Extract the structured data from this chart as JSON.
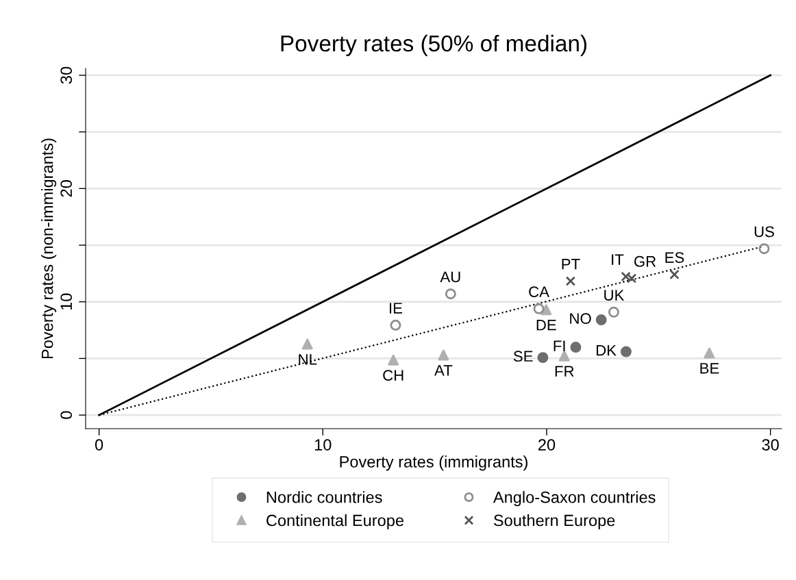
{
  "chart_data": {
    "type": "scatter",
    "title": "Poverty rates (50% of median)",
    "xlabel": "Poverty rates (immigrants)",
    "ylabel": "Poverty rates (non-immigrants)",
    "xlim": [
      -0.6,
      30.5
    ],
    "ylim": [
      -1.2,
      30.6
    ],
    "xticks": [
      0,
      10,
      20,
      30
    ],
    "yticks": [
      0,
      {
        "value": 5,
        "label": null
      },
      10,
      {
        "value": 15,
        "label": null
      },
      20,
      {
        "value": 25,
        "label": null
      },
      30
    ],
    "grid": "y",
    "legend": "bottom",
    "series": [
      {
        "name": "Nordic countries",
        "color": "#6e6e6e",
        "marker": "circle",
        "x": [
          19.83,
          21.3,
          22.44,
          23.55
        ],
        "values": [
          5.08,
          5.99,
          8.41,
          5.6
        ]
      },
      {
        "name": "Continental Europe",
        "color": "#b0b0b0",
        "marker": "triangle",
        "x": [
          19.98,
          9.31,
          13.15,
          15.39,
          20.79,
          27.27
        ],
        "values": [
          9.3,
          6.27,
          4.86,
          5.3,
          5.22,
          5.48
        ]
      },
      {
        "name": "Anglo-Saxon countries",
        "color": "#8e8e8e",
        "marker": "circle",
        "x": [
          29.72,
          15.71,
          19.65,
          23.0,
          13.25
        ],
        "values": [
          14.69,
          10.7,
          9.39,
          9.09,
          7.94
        ]
      },
      {
        "name": "Southern Europe",
        "color": "#555555",
        "marker": "cross",
        "x": [
          21.07,
          23.54,
          23.8,
          25.71
        ],
        "values": [
          11.83,
          12.23,
          12.07,
          12.41
        ]
      },
      {
        "type": "line",
        "color": "#000000",
        "line_style": "solid",
        "x": [
          0,
          30
        ],
        "values": [
          0,
          30
        ]
      },
      {
        "type": "line",
        "color": "#000000",
        "line_style": "dotted",
        "x": [
          0,
          29.7
        ],
        "values": [
          0,
          14.9
        ]
      }
    ],
    "annotations": [
      {
        "text": "SE",
        "x": 19.83,
        "y": 5.08
      },
      {
        "text": "FI",
        "x": 21.3,
        "y": 5.99
      },
      {
        "text": "NO",
        "x": 22.44,
        "y": 8.41
      },
      {
        "text": "DK",
        "x": 23.55,
        "y": 5.6
      },
      {
        "text": "DE",
        "x": 19.98,
        "y": 9.3
      },
      {
        "text": "NL",
        "x": 9.31,
        "y": 6.27
      },
      {
        "text": "CH",
        "x": 13.15,
        "y": 4.86
      },
      {
        "text": "AT",
        "x": 15.39,
        "y": 5.3
      },
      {
        "text": "FR",
        "x": 20.79,
        "y": 5.22
      },
      {
        "text": "BE",
        "x": 27.27,
        "y": 5.48
      },
      {
        "text": "US",
        "x": 29.72,
        "y": 14.69
      },
      {
        "text": "AU",
        "x": 15.71,
        "y": 10.7
      },
      {
        "text": "CA",
        "x": 19.65,
        "y": 9.39
      },
      {
        "text": "UK",
        "x": 23.0,
        "y": 9.09
      },
      {
        "text": "IE",
        "x": 13.25,
        "y": 7.94
      },
      {
        "text": "PT",
        "x": 21.07,
        "y": 11.83
      },
      {
        "text": "IT",
        "x": 23.54,
        "y": 12.23
      },
      {
        "text": "GR",
        "x": 23.8,
        "y": 12.07
      },
      {
        "text": "ES",
        "x": 25.71,
        "y": 12.41
      }
    ]
  }
}
